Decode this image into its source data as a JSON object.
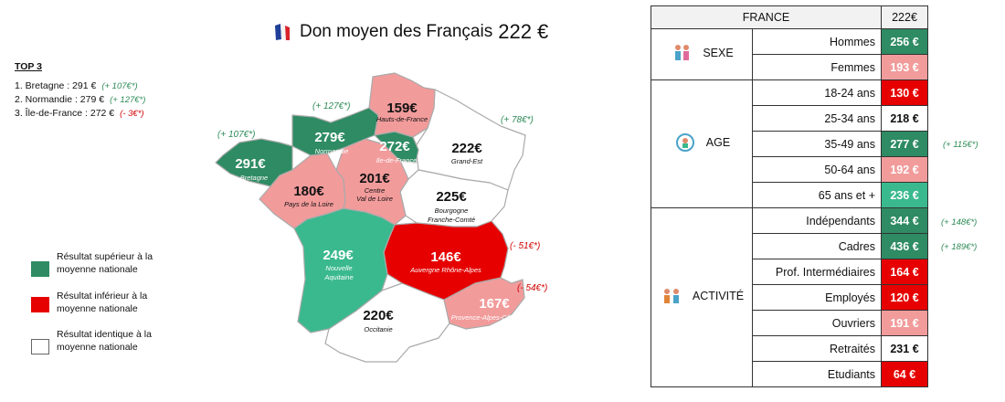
{
  "colors": {
    "sup": "#2e8b63",
    "mid_green": "#3ab98e",
    "inf": "#e60000",
    "pink": "#f29b9b",
    "neutral": "#ffffff",
    "ann_pos": "#2e8b57",
    "ann_neg": "#d00000"
  },
  "title": {
    "text": "Don moyen des Français",
    "amount": "222 €"
  },
  "top3": {
    "title": "TOP 3",
    "items": [
      {
        "text": "1. Bretagne : 291 €",
        "delta": "(+ 107€*)",
        "neg": false
      },
      {
        "text": "2. Normandie : 279 €",
        "delta": "(+ 127€*)",
        "neg": false
      },
      {
        "text": "3. Île-de-France : 272 €",
        "delta": "(- 3€*)",
        "neg": true
      }
    ]
  },
  "legend": [
    {
      "label": "Résultat supérieur à la moyenne nationale",
      "color": "#2e8b63"
    },
    {
      "label": "Résultat inférieur à la moyenne nationale",
      "color": "#e60000"
    },
    {
      "label": "Résultat identique à la moyenne nationale",
      "color": "#ffffff"
    }
  ],
  "regions": {
    "bretagne": {
      "value": "291€",
      "name": "Bretagne"
    },
    "normandie": {
      "value": "279€",
      "name": "Normandie"
    },
    "hdf": {
      "value": "159€",
      "name": "Hauts-de-France"
    },
    "idf": {
      "value": "272€",
      "name": "Ile-de-France"
    },
    "grandest": {
      "value": "222€",
      "name": "Grand-Est"
    },
    "pdl": {
      "value": "180€",
      "name": "Pays de la Loire"
    },
    "cvl": {
      "value": "201€",
      "name1": "Centre",
      "name2": "Val de Loire"
    },
    "bfc": {
      "value": "225€",
      "name1": "Bourgogne",
      "name2": "Franche-Comté"
    },
    "na": {
      "value": "249€",
      "name1": "Nouvelle",
      "name2": "Aquitaine"
    },
    "ara": {
      "value": "146€",
      "name": "Auvergne Rhône-Alpes"
    },
    "occ": {
      "value": "220€",
      "name": "Occitanie"
    },
    "paca": {
      "value": "167€",
      "name": "Provence-Alpes-Côte d'Azur"
    }
  },
  "map_annotations": {
    "bretagne": "(+ 107€*)",
    "normandie": "(+ 127€*)",
    "grandest": "(+ 78€*)",
    "ara": "(- 51€*)",
    "paca": "(- 54€*)"
  },
  "table": {
    "header": {
      "label": "FRANCE",
      "value": "222€"
    },
    "groups": [
      {
        "label": "SEXE",
        "icon": "gender-icon",
        "rows": [
          {
            "label": "Hommes",
            "value": "256 €",
            "color": "#2e8b63",
            "text": "#ffffff"
          },
          {
            "label": "Femmes",
            "value": "193 €",
            "color": "#f29b9b",
            "text": "#ffffff"
          }
        ]
      },
      {
        "label": "AGE",
        "icon": "age-icon",
        "rows": [
          {
            "label": "18-24 ans",
            "value": "130 €",
            "color": "#e60000",
            "text": "#ffffff"
          },
          {
            "label": "25-34 ans",
            "value": "218 €",
            "color": "#ffffff",
            "text": "#111111"
          },
          {
            "label": "35-49 ans",
            "value": "277 €",
            "color": "#2e8b63",
            "text": "#ffffff",
            "note": "(+ 115€*)"
          },
          {
            "label": "50-64 ans",
            "value": "192 €",
            "color": "#f29b9b",
            "text": "#ffffff"
          },
          {
            "label": "65 ans et +",
            "value": "236 €",
            "color": "#3ab98e",
            "text": "#ffffff"
          }
        ]
      },
      {
        "label": "ACTIVITÉ",
        "icon": "work-icon",
        "rows": [
          {
            "label": "Indépendants",
            "value": "344 €",
            "color": "#2e8b63",
            "text": "#ffffff",
            "note": "(+ 148€*)"
          },
          {
            "label": "Cadres",
            "value": "436 €",
            "color": "#2e8b63",
            "text": "#ffffff",
            "note": "(+ 189€*)"
          },
          {
            "label": "Prof. Intermédiaires",
            "value": "164 €",
            "color": "#e60000",
            "text": "#ffffff"
          },
          {
            "label": "Employés",
            "value": "120 €",
            "color": "#e60000",
            "text": "#ffffff"
          },
          {
            "label": "Ouvriers",
            "value": "191 €",
            "color": "#f29b9b",
            "text": "#ffffff"
          },
          {
            "label": "Retraités",
            "value": "231 €",
            "color": "#ffffff",
            "text": "#111111"
          },
          {
            "label": "Etudiants",
            "value": "64 €",
            "color": "#e60000",
            "text": "#ffffff"
          }
        ]
      }
    ]
  }
}
